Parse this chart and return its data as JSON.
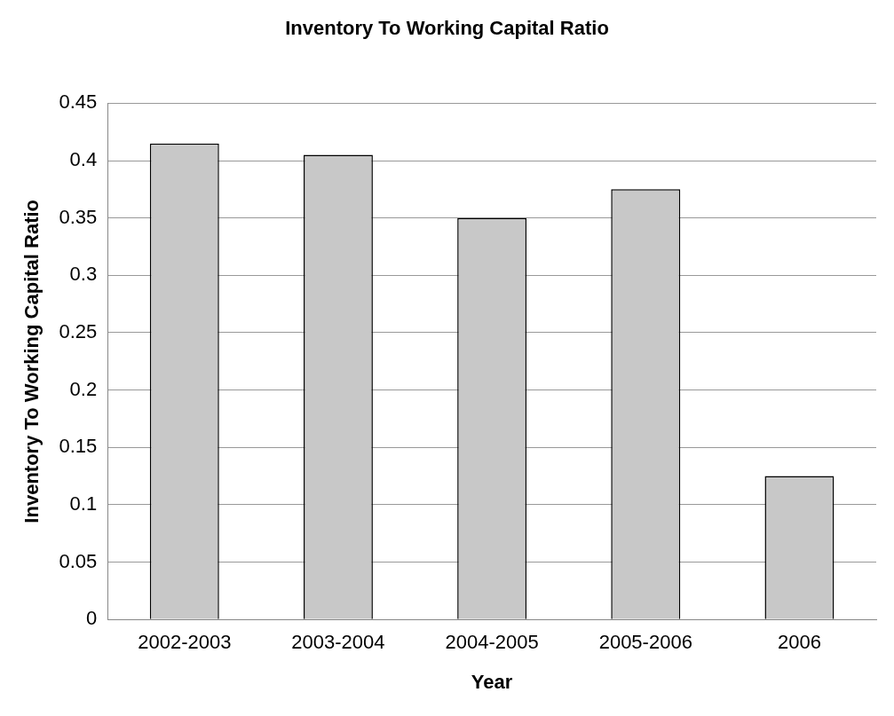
{
  "chart_data": {
    "type": "bar",
    "title": "Inventory To Working Capital Ratio",
    "xlabel": "Year",
    "ylabel": "Inventory To Working Capital Ratio",
    "categories": [
      "2002-2003",
      "2003-2004",
      "2004-2005",
      "2005-2006",
      "2006"
    ],
    "values": [
      0.415,
      0.405,
      0.35,
      0.375,
      0.125
    ],
    "color": "#c8c8c8",
    "ylim": [
      0,
      0.45
    ],
    "yticks": [
      0,
      0.05,
      0.1,
      0.15,
      0.2,
      0.25,
      0.3,
      0.35,
      0.4,
      0.45
    ],
    "grid": "y",
    "legend": false
  }
}
